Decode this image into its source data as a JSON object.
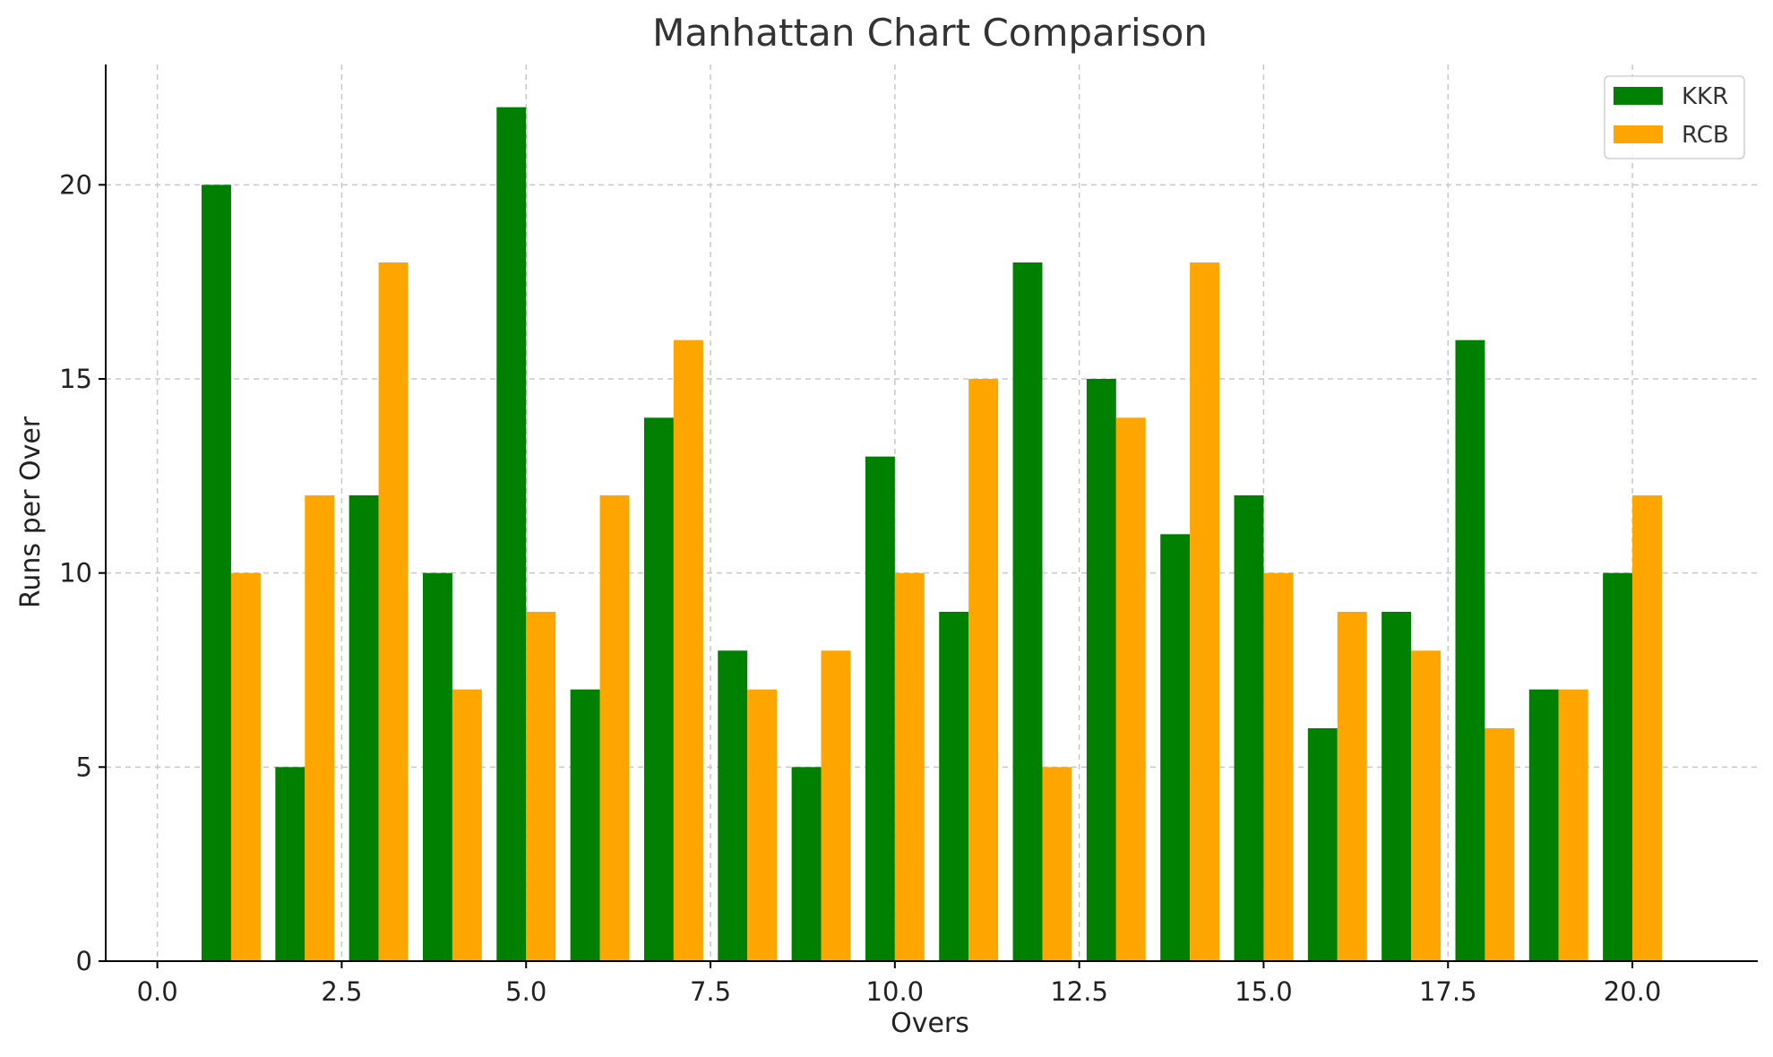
{
  "chart_data": {
    "type": "bar",
    "title": "Manhattan Chart Comparison",
    "xlabel": "Overs",
    "ylabel": "Runs per Over",
    "xlim": [
      -0.7,
      21.7
    ],
    "ylim": [
      0,
      23.1
    ],
    "x": [
      1,
      2,
      3,
      4,
      5,
      6,
      7,
      8,
      9,
      10,
      11,
      12,
      13,
      14,
      15,
      16,
      17,
      18,
      19,
      20
    ],
    "x_ticks": [
      0.0,
      2.5,
      5.0,
      7.5,
      10.0,
      12.5,
      15.0,
      17.5,
      20.0
    ],
    "x_tick_labels": [
      "0.0",
      "2.5",
      "5.0",
      "7.5",
      "10.0",
      "12.5",
      "15.0",
      "17.5",
      "20.0"
    ],
    "y_ticks": [
      0,
      5,
      10,
      15,
      20
    ],
    "y_tick_labels": [
      "0",
      "5",
      "10",
      "15",
      "20"
    ],
    "bar_width": 0.4,
    "grid": true,
    "legend_position": "top-right",
    "series": [
      {
        "name": "KKR",
        "color": "#008000",
        "offset": -0.2,
        "values": [
          20,
          5,
          12,
          10,
          22,
          7,
          14,
          8,
          5,
          13,
          9,
          18,
          15,
          11,
          12,
          6,
          9,
          16,
          7,
          10
        ]
      },
      {
        "name": "RCB",
        "color": "#FFA500",
        "offset": 0.2,
        "values": [
          10,
          12,
          18,
          7,
          9,
          12,
          16,
          7,
          8,
          10,
          15,
          5,
          14,
          18,
          10,
          9,
          8,
          6,
          7,
          12
        ]
      }
    ]
  }
}
